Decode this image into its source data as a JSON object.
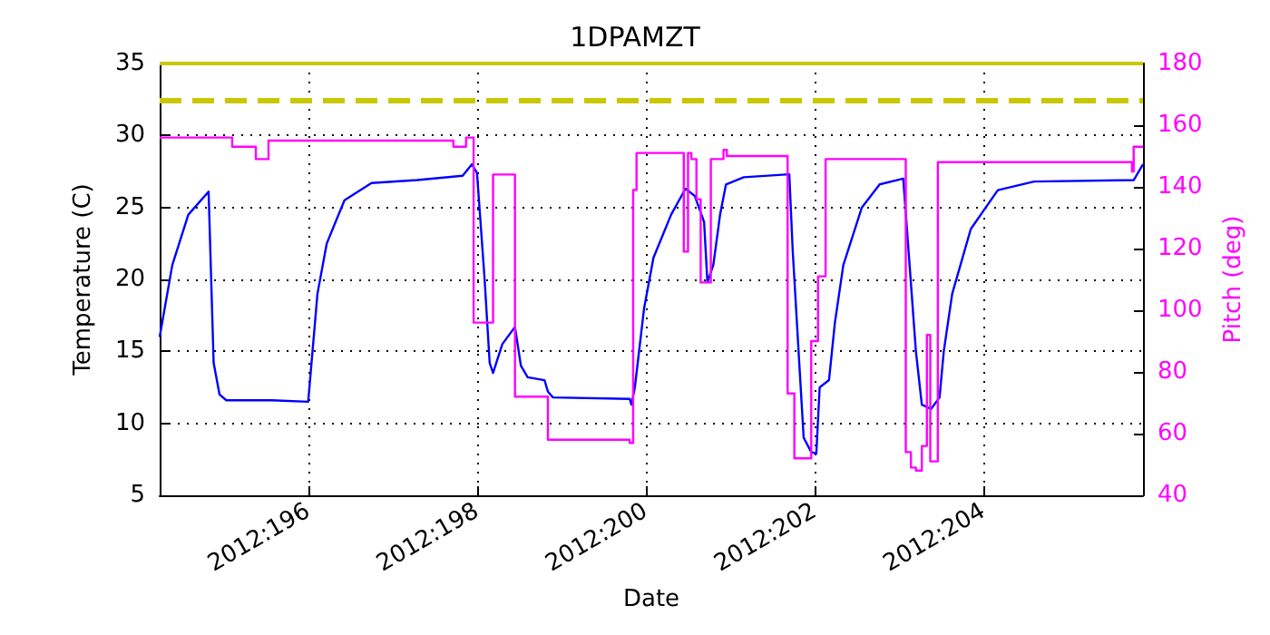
{
  "chart_data": {
    "type": "line",
    "title": "1DPAMZT",
    "xlabel": "Date",
    "ylabel": "Temperature (C)",
    "y2label": "Pitch (deg)",
    "xlim": [
      "2012-07-12T05:46",
      "2012-07-23T21:22"
    ],
    "xticks": [
      {
        "value": "2012-07-14",
        "label": "2012:196"
      },
      {
        "value": "2012-07-16",
        "label": "2012:198"
      },
      {
        "value": "2012-07-18",
        "label": "2012:200"
      },
      {
        "value": "2012-07-20",
        "label": "2012:202"
      },
      {
        "value": "2012-07-22",
        "label": "2012:204"
      }
    ],
    "ylim": [
      5,
      35
    ],
    "yticks": [
      5,
      10,
      15,
      20,
      25,
      30,
      35
    ],
    "y2lim": [
      40,
      180
    ],
    "y2ticks": [
      40,
      60,
      80,
      100,
      120,
      140,
      160,
      180
    ],
    "grid": true,
    "marker": "none",
    "line_style": "solid",
    "series": [
      {
        "color": "#0000ff",
        "x": [
          "2012-07-12T05:46",
          "2012-07-12T09:22",
          "2012-07-12T13:55",
          "2012-07-12T19:41",
          "2012-07-12T21:07",
          "2012-07-12T22:48",
          "2012-07-13T00:43",
          "2012-07-13T13:41",
          "2012-07-14T00:00",
          "2012-07-14T02:38",
          "2012-07-14T05:17",
          "2012-07-14T10:19",
          "2012-07-14T18:00",
          "2012-07-15T06:58",
          "2012-07-15T19:55",
          "2012-07-15T22:34",
          "2012-07-16T00:00",
          "2012-07-16T02:10",
          "2012-07-16T03:36",
          "2012-07-16T04:34",
          "2012-07-16T07:12",
          "2012-07-16T10:48",
          "2012-07-16T12:29",
          "2012-07-16T14:24",
          "2012-07-16T19:12",
          "2012-07-16T20:10",
          "2012-07-16T21:36",
          "2012-07-17T19:26",
          "2012-07-17T19:55",
          "2012-07-17T20:53",
          "2012-07-17T23:31",
          "2012-07-18T02:10",
          "2012-07-18T07:12",
          "2012-07-18T11:17",
          "2012-07-18T13:55",
          "2012-07-18T16:34",
          "2012-07-18T17:31",
          "2012-07-18T19:12",
          "2012-07-18T21:07",
          "2012-07-18T22:48",
          "2012-07-19T03:50",
          "2012-07-19T16:48",
          "2012-07-19T17:46",
          "2012-07-19T19:55",
          "2012-07-19T20:53",
          "2012-07-19T23:02",
          "2012-07-20T00:29",
          "2012-07-20T01:26",
          "2012-07-20T04:05",
          "2012-07-20T05:46",
          "2012-07-20T08:10",
          "2012-07-20T13:26",
          "2012-07-20T18:29",
          "2012-07-21T01:12",
          "2012-07-21T02:24",
          "2012-07-21T04:48",
          "2012-07-21T06:29",
          "2012-07-21T09:07",
          "2012-07-21T11:31",
          "2012-07-21T12:43",
          "2012-07-21T15:07",
          "2012-07-21T20:24",
          "2012-07-22T04:05",
          "2012-07-22T14:24",
          "2012-07-23T18:43",
          "2012-07-23T21:22"
        ],
        "values": [
          16,
          21,
          24.5,
          26.1,
          14.2,
          12,
          11.6,
          11.6,
          11.5,
          19,
          22.5,
          25.5,
          26.7,
          26.9,
          27.2,
          28,
          27.4,
          20,
          14.2,
          13.5,
          15.5,
          16.7,
          14,
          13.2,
          13,
          12.2,
          11.8,
          11.7,
          11.3,
          12.5,
          18,
          21.5,
          24.5,
          26.3,
          25.8,
          24,
          19.8,
          21,
          24.5,
          26.6,
          27.1,
          27.3,
          22,
          13,
          9,
          8,
          7.9,
          12.5,
          13,
          17,
          21,
          25,
          26.6,
          27,
          23,
          15,
          11.3,
          11,
          11.8,
          15,
          19,
          23.5,
          26.2,
          26.8,
          26.9,
          28
        ]
      },
      {
        "type": "step",
        "axis": "y2",
        "color": "#ff00ff",
        "x": [
          "2012-07-12T05:46",
          "2012-07-13T02:24",
          "2012-07-13T09:07",
          "2012-07-13T12:43",
          "2012-07-15T17:17",
          "2012-07-15T20:53",
          "2012-07-15T23:02",
          "2012-07-16T04:34",
          "2012-07-16T10:48",
          "2012-07-16T20:10",
          "2012-07-17T19:26",
          "2012-07-17T20:24",
          "2012-07-17T21:22",
          "2012-07-18T10:48",
          "2012-07-18T12:00",
          "2012-07-18T12:58",
          "2012-07-18T14:24",
          "2012-07-18T15:36",
          "2012-07-18T18:29",
          "2012-07-18T22:05",
          "2012-07-18T23:02",
          "2012-07-19T16:19",
          "2012-07-19T18:14",
          "2012-07-19T23:02",
          "2012-07-20T00:58",
          "2012-07-20T03:07",
          "2012-07-21T01:55",
          "2012-07-21T03:22",
          "2012-07-21T04:48",
          "2012-07-21T06:29",
          "2012-07-21T07:55",
          "2012-07-21T08:53",
          "2012-07-21T11:02",
          "2012-07-23T18:14",
          "2012-07-23T18:43",
          "2012-07-23T21:22"
        ],
        "values": [
          156,
          153,
          149,
          155,
          153,
          156,
          96,
          144,
          72,
          58,
          57,
          139,
          151,
          119,
          151,
          149,
          136,
          109,
          149,
          152,
          150,
          73,
          52,
          90,
          111,
          149,
          54,
          49,
          48,
          56,
          92,
          51,
          148,
          145,
          153,
          153
        ]
      }
    ],
    "ref_lines": [
      {
        "axis": "y",
        "value": 32.5,
        "color": "#c8c800",
        "line_style": "dashed"
      },
      {
        "axis": "y",
        "value": 35,
        "color": "#c8c800",
        "line_style": "solid"
      }
    ]
  }
}
